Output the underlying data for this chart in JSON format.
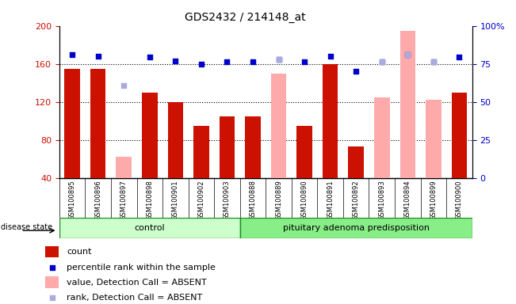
{
  "title": "GDS2432 / 214148_at",
  "samples": [
    "GSM100895",
    "GSM100896",
    "GSM100897",
    "GSM100898",
    "GSM100901",
    "GSM100902",
    "GSM100903",
    "GSM100888",
    "GSM100889",
    "GSM100890",
    "GSM100891",
    "GSM100892",
    "GSM100893",
    "GSM100894",
    "GSM100899",
    "GSM100900"
  ],
  "n_control": 7,
  "count_values": [
    155,
    155,
    0,
    130,
    120,
    95,
    105,
    105,
    0,
    95,
    160,
    73,
    0,
    0,
    0,
    130
  ],
  "absent_value": [
    0,
    0,
    62,
    0,
    0,
    0,
    0,
    0,
    150,
    0,
    0,
    0,
    125,
    195,
    122,
    0
  ],
  "rank_values": [
    170,
    168,
    0,
    167,
    163,
    160,
    162,
    162,
    165,
    162,
    168,
    152,
    162,
    170,
    162,
    167
  ],
  "absent_rank": [
    0,
    0,
    137,
    0,
    0,
    0,
    0,
    0,
    165,
    0,
    0,
    0,
    162,
    170,
    162,
    0
  ],
  "ylim_left": [
    40,
    200
  ],
  "ylim_right": [
    0,
    100
  ],
  "yticks_left": [
    40,
    80,
    120,
    160,
    200
  ],
  "yticks_right": [
    0,
    25,
    50,
    75,
    100
  ],
  "ytick_right_labels": [
    "0",
    "25",
    "50",
    "75",
    "100%"
  ],
  "bar_color_count": "#cc1100",
  "bar_color_absent": "#ffaaaa",
  "dot_color_rank": "#0000cc",
  "dot_color_absent_rank": "#aaaadd",
  "ctrl_color": "#ccffcc",
  "pit_color": "#88ee88",
  "ctrl_label": "control",
  "pit_label": "pituitary adenoma predisposition",
  "group_border_color": "#228822",
  "tick_bg_color": "#d0d0d0",
  "background_color": "#ffffff",
  "legend": [
    {
      "color": "#cc1100",
      "type": "rect",
      "label": "count"
    },
    {
      "color": "#0000cc",
      "type": "square",
      "label": "percentile rank within the sample"
    },
    {
      "color": "#ffaaaa",
      "type": "rect",
      "label": "value, Detection Call = ABSENT"
    },
    {
      "color": "#aaaadd",
      "type": "square",
      "label": "rank, Detection Call = ABSENT"
    }
  ]
}
